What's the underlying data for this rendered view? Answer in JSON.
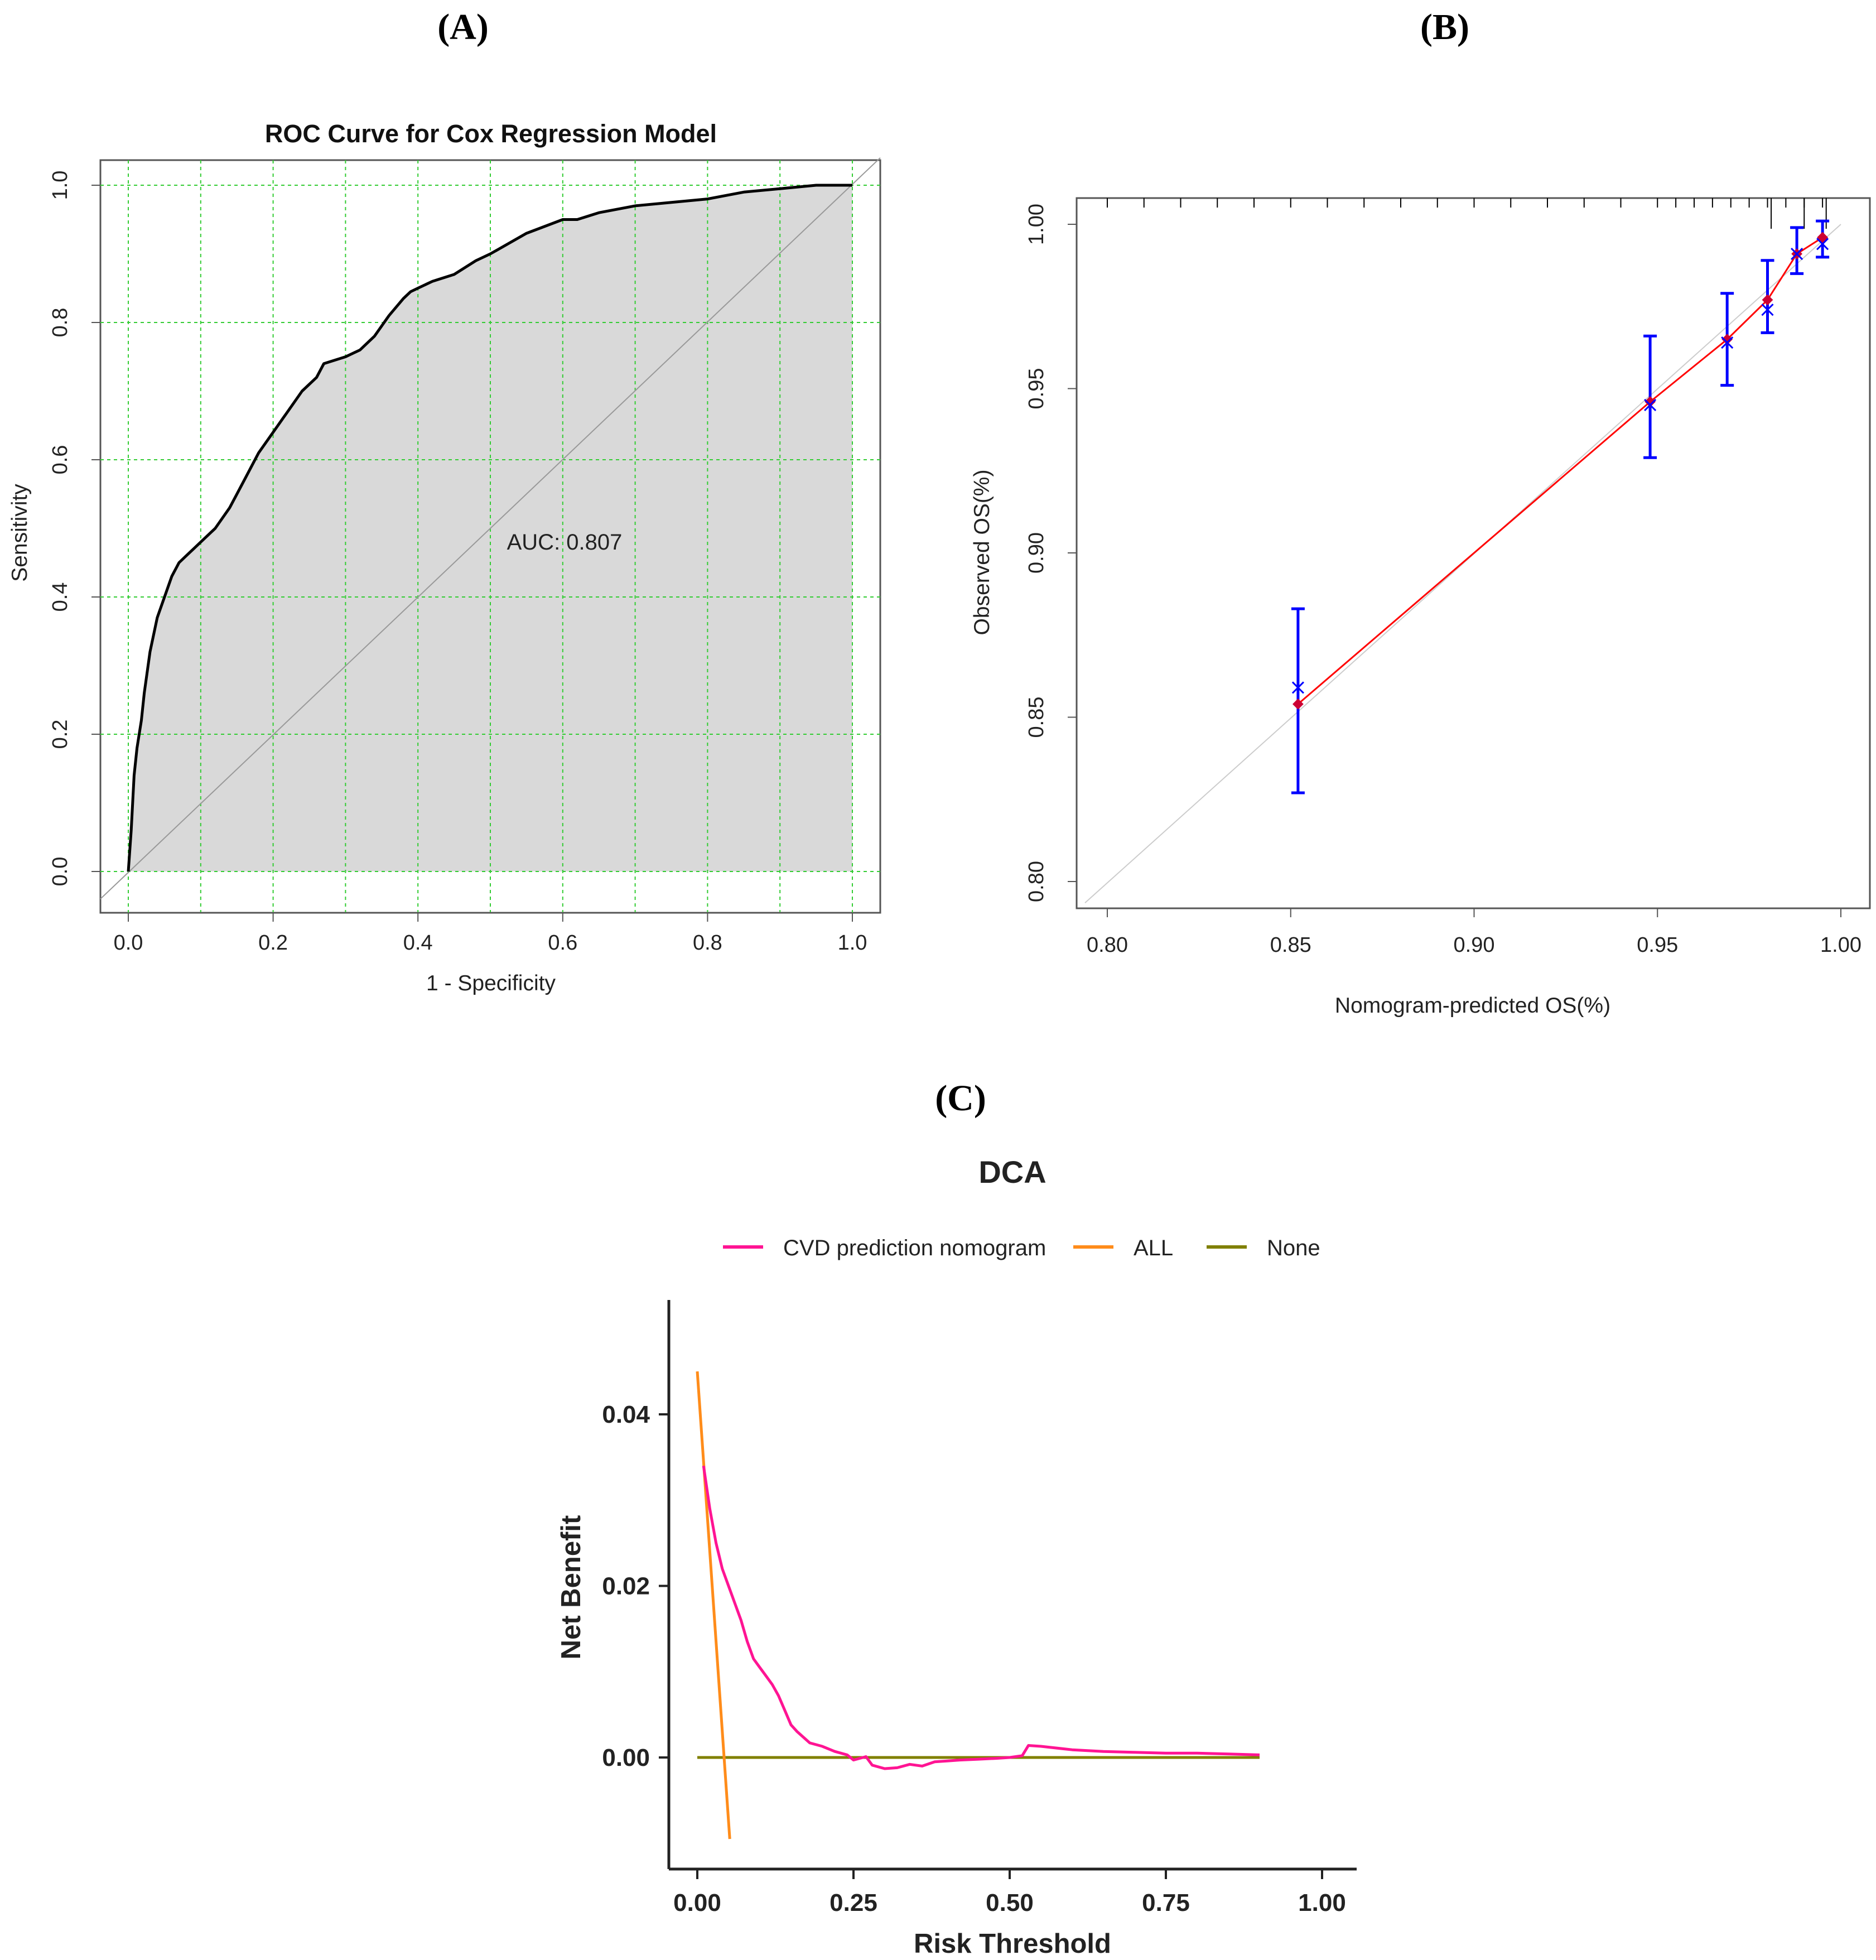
{
  "panels": {
    "a": {
      "label": "(A)"
    },
    "b": {
      "label": "(B)"
    },
    "c": {
      "label": "(C)"
    }
  },
  "chart_data": [
    {
      "id": "A",
      "type": "line",
      "title": "ROC Curve for Cox Regression Model",
      "xlabel": "1 - Specificity",
      "ylabel": "Sensitivity",
      "xlim": [
        0,
        1
      ],
      "ylim": [
        0,
        1
      ],
      "xticks": [
        "0.0",
        "0.2",
        "0.4",
        "0.6",
        "0.8",
        "1.0"
      ],
      "yticks": [
        "0.0",
        "0.2",
        "0.4",
        "0.6",
        "0.8",
        "1.0"
      ],
      "grid": true,
      "annotation": "AUC: 0.807",
      "colors": {
        "fill": "#d9d9d9",
        "curve": "#000000",
        "grid": "#33cc33",
        "diagonal": "#999999"
      },
      "series": [
        {
          "name": "ROC",
          "x": [
            0,
            0.002,
            0.004,
            0.006,
            0.008,
            0.012,
            0.018,
            0.022,
            0.03,
            0.04,
            0.05,
            0.06,
            0.07,
            0.08,
            0.09,
            0.1,
            0.12,
            0.14,
            0.16,
            0.18,
            0.2,
            0.22,
            0.24,
            0.26,
            0.27,
            0.3,
            0.32,
            0.34,
            0.36,
            0.38,
            0.39,
            0.4,
            0.42,
            0.45,
            0.48,
            0.5,
            0.55,
            0.6,
            0.62,
            0.65,
            0.7,
            0.75,
            0.8,
            0.85,
            0.9,
            0.95,
            1.0
          ],
          "y": [
            0,
            0.03,
            0.06,
            0.1,
            0.14,
            0.18,
            0.22,
            0.26,
            0.32,
            0.37,
            0.4,
            0.43,
            0.45,
            0.46,
            0.47,
            0.48,
            0.5,
            0.53,
            0.57,
            0.61,
            0.64,
            0.67,
            0.7,
            0.72,
            0.74,
            0.75,
            0.76,
            0.78,
            0.81,
            0.835,
            0.845,
            0.85,
            0.86,
            0.87,
            0.89,
            0.9,
            0.93,
            0.95,
            0.95,
            0.96,
            0.97,
            0.975,
            0.98,
            0.99,
            0.995,
            1.0,
            1.0
          ]
        },
        {
          "name": "Reference",
          "x": [
            0,
            1
          ],
          "y": [
            0,
            1
          ]
        }
      ]
    },
    {
      "id": "B",
      "type": "scatter",
      "title": "",
      "xlabel": "Nomogram-predicted OS(%)",
      "ylabel": "Observed OS(%)",
      "xlim": [
        0.79,
        1.0
      ],
      "ylim": [
        0.795,
        1.008
      ],
      "xticks": [
        "0.80",
        "0.85",
        "0.90",
        "0.95",
        "1.00"
      ],
      "yticks": [
        "0.80",
        "0.85",
        "0.90",
        "0.95",
        "1.00"
      ],
      "colors": {
        "errorbar": "#0000ff",
        "observed": "#0000ff",
        "point": "#cc0033",
        "line": "#ff0000",
        "ideal": "#cccccc"
      },
      "series": [
        {
          "name": "calibration",
          "x": [
            0.852,
            0.948,
            0.969,
            0.98,
            0.988,
            0.995
          ],
          "y": [
            0.854,
            0.946,
            0.965,
            0.977,
            0.991,
            0.996
          ],
          "observed": [
            0.859,
            0.945,
            0.964,
            0.974,
            0.991,
            0.994
          ],
          "lower": [
            0.827,
            0.929,
            0.951,
            0.967,
            0.985,
            0.99
          ],
          "upper": [
            0.883,
            0.966,
            0.979,
            0.989,
            0.999,
            1.001
          ]
        },
        {
          "name": "ideal",
          "x": [
            0.79,
            1.0
          ],
          "y": [
            0.79,
            1.0
          ]
        }
      ],
      "rug_x": [
        0.8,
        0.81,
        0.82,
        0.83,
        0.84,
        0.85,
        0.86,
        0.87,
        0.88,
        0.89,
        0.9,
        0.91,
        0.92,
        0.93,
        0.94,
        0.95,
        0.955,
        0.96,
        0.965,
        0.97,
        0.975,
        0.98,
        0.985,
        0.99,
        0.995
      ],
      "rug_tall_x": [
        0.981,
        0.99,
        0.996
      ]
    },
    {
      "id": "C",
      "type": "line",
      "title": "DCA",
      "xlabel": "Risk Threshold",
      "ylabel": "Net Benefit",
      "xlim": [
        -0.05,
        1.05
      ],
      "ylim": [
        -0.013,
        0.053
      ],
      "xticks": [
        "0.00",
        "0.25",
        "0.50",
        "0.75",
        "1.00"
      ],
      "xtick_values": [
        0,
        0.25,
        0.5,
        0.75,
        1.0
      ],
      "yticks": [
        "0.00",
        "0.02",
        "0.04"
      ],
      "ytick_values": [
        0,
        0.02,
        0.04
      ],
      "legend_position": "top",
      "series": [
        {
          "name": "CVD prediction nomogram",
          "color": "#ff1493",
          "x": [
            0.01,
            0.02,
            0.03,
            0.04,
            0.05,
            0.06,
            0.07,
            0.08,
            0.09,
            0.1,
            0.11,
            0.12,
            0.13,
            0.14,
            0.15,
            0.16,
            0.18,
            0.2,
            0.22,
            0.24,
            0.25,
            0.27,
            0.28,
            0.3,
            0.32,
            0.34,
            0.36,
            0.38,
            0.4,
            0.42,
            0.45,
            0.48,
            0.5,
            0.52,
            0.53,
            0.55,
            0.6,
            0.65,
            0.7,
            0.75,
            0.8,
            0.85,
            0.9
          ],
          "y": [
            0.034,
            0.029,
            0.025,
            0.022,
            0.02,
            0.018,
            0.016,
            0.0135,
            0.0115,
            0.0105,
            0.0095,
            0.0085,
            0.0072,
            0.0055,
            0.0038,
            0.003,
            0.0017,
            0.0013,
            0.0007,
            0.0003,
            -0.0003,
            0.0001,
            -0.0009,
            -0.0013,
            -0.0012,
            -0.0008,
            -0.001,
            -0.0005,
            -0.0004,
            -0.0003,
            -0.0002,
            -0.0001,
            0.0,
            0.0002,
            0.0014,
            0.0013,
            0.0009,
            0.0007,
            0.0006,
            0.0005,
            0.0005,
            0.0004,
            0.0003
          ]
        },
        {
          "name": "ALL",
          "color": "#ff8c1a",
          "x": [
            0.0,
            0.052
          ],
          "y": [
            0.045,
            -0.0095
          ]
        },
        {
          "name": "None",
          "color": "#808000",
          "x": [
            0.0,
            0.9
          ],
          "y": [
            0.0,
            0.0
          ]
        }
      ]
    }
  ]
}
